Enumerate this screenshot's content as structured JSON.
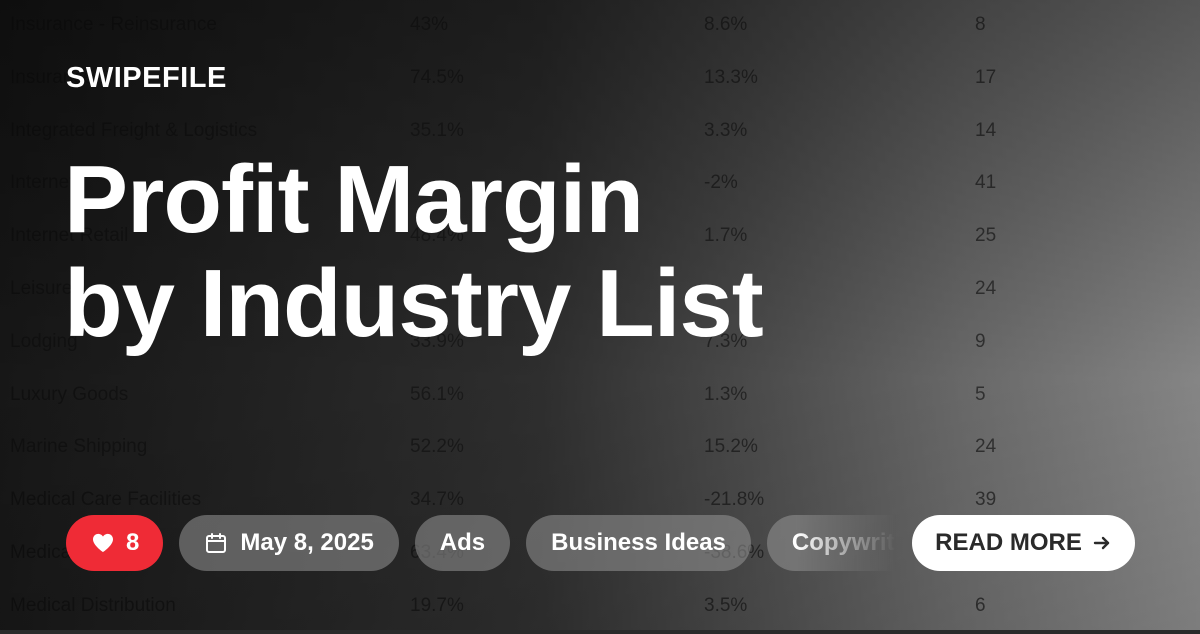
{
  "brand": "SWIPEFILE",
  "title_lines": [
    "Profit Margin",
    "by Industry List"
  ],
  "likes": {
    "count": "8",
    "icon": "heart-icon"
  },
  "date": {
    "text": "May 8, 2025",
    "icon": "calendar-icon"
  },
  "tags": [
    "Ads",
    "Business Ideas",
    "Copywriting"
  ],
  "read_more": {
    "label": "READ MORE",
    "icon": "arrow-right-icon"
  },
  "colors": {
    "likes_bg": "#ef2b36",
    "button_bg": "#ffffff",
    "button_text": "#2a2a2a"
  },
  "background_table": {
    "rows": [
      [
        "Insurance - Reinsurance",
        "43%",
        "8.6%",
        "8"
      ],
      [
        "Insurance",
        "74.5%",
        "13.3%",
        "17"
      ],
      [
        "Integrated Freight & Logistics",
        "35.1%",
        "3.3%",
        "14"
      ],
      [
        "Internet",
        "",
        "-2%",
        "41"
      ],
      [
        "Internet Retail",
        "48.4%",
        "1.7%",
        "25"
      ],
      [
        "Leisure",
        "",
        "",
        "24"
      ],
      [
        "Lodging",
        "33.9%",
        "7.3%",
        "9"
      ],
      [
        "Luxury Goods",
        "56.1%",
        "1.3%",
        "5"
      ],
      [
        "Marine Shipping",
        "52.2%",
        "15.2%",
        "24"
      ],
      [
        "Medical Care Facilities",
        "34.7%",
        "-21.8%",
        "39"
      ],
      [
        "Medica",
        "63.4%",
        "-38.6%",
        ""
      ],
      [
        "Medical Distribution",
        "19.7%",
        "3.5%",
        "6"
      ]
    ]
  }
}
